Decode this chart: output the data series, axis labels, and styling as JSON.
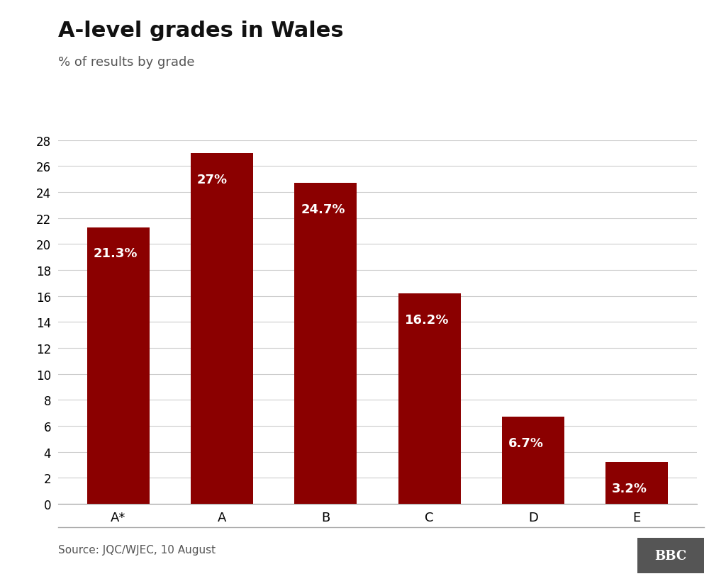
{
  "title": "A-level grades in Wales",
  "subtitle": "% of results by grade",
  "categories": [
    "A*",
    "A",
    "B",
    "C",
    "D",
    "E"
  ],
  "values": [
    21.3,
    27.0,
    24.7,
    16.2,
    6.7,
    3.2
  ],
  "labels": [
    "21.3%",
    "27%",
    "24.7%",
    "16.2%",
    "6.7%",
    "3.2%"
  ],
  "bar_color": "#8B0000",
  "background_color": "#ffffff",
  "text_color": "#ffffff",
  "title_color": "#111111",
  "subtitle_color": "#555555",
  "ylim": [
    0,
    28
  ],
  "yticks": [
    0,
    2,
    4,
    6,
    8,
    10,
    12,
    14,
    16,
    18,
    20,
    22,
    24,
    26,
    28
  ],
  "source_text": "Source: JQC/WJEC, 10 August",
  "bbc_text": "BBC",
  "title_fontsize": 22,
  "subtitle_fontsize": 13,
  "label_fontsize": 13,
  "tick_fontsize": 12,
  "source_fontsize": 11
}
